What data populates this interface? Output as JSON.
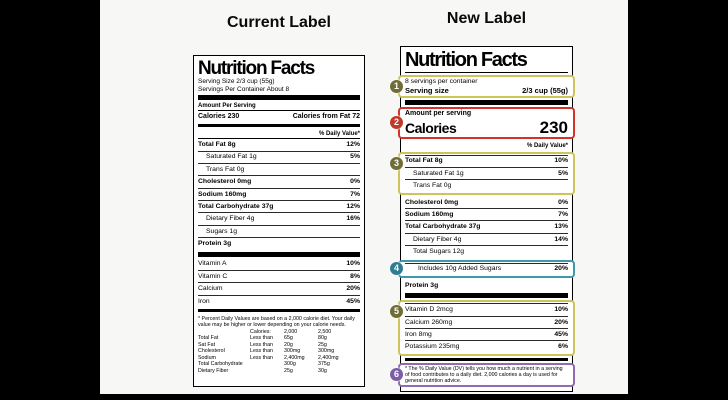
{
  "headings": {
    "current": "Current Label",
    "new": "New Label"
  },
  "colors": {
    "background": "#000000",
    "panel": "#f7f7f5",
    "callout_olive": "#6f6d35",
    "callout_red": "#c0392b",
    "callout_teal": "#2e7d92",
    "callout_purple": "#7a5ea6",
    "highlight_yellow": "#cdc55c",
    "highlight_red": "#d2342a",
    "highlight_teal": "#3e9aa8",
    "highlight_purple": "#8f6bb0"
  },
  "callouts": {
    "items": [
      "1",
      "2",
      "3",
      "4",
      "5",
      "6"
    ]
  },
  "current_label": {
    "title": "Nutrition Facts",
    "serving_size": "Serving Size 2/3 cup (55g)",
    "servings_per_container": "Servings Per Container About 8",
    "amount_per_serving": "Amount Per Serving",
    "calories": "Calories 230",
    "calories_from_fat": "Calories from Fat 72",
    "daily_value_header": "% Daily Value*",
    "nutrient_rows": [
      {
        "label": "Total Fat 8g",
        "value": "12%"
      },
      {
        "label": "Saturated Fat 1g",
        "value": "5%"
      },
      {
        "label": "Trans Fat 0g",
        "value": ""
      },
      {
        "label": "Cholesterol 0mg",
        "value": "0%"
      },
      {
        "label": "Sodium 160mg",
        "value": "7%"
      },
      {
        "label": "Total Carbohydrate 37g",
        "value": "12%"
      },
      {
        "label": "Dietary Fiber 4g",
        "value": "16%"
      },
      {
        "label": "Sugars 1g",
        "value": ""
      },
      {
        "label": "Protein 3g",
        "value": ""
      }
    ],
    "vitamin_rows": [
      {
        "label": "Vitamin A",
        "value": "10%"
      },
      {
        "label": "Vitamin C",
        "value": "8%"
      },
      {
        "label": "Calcium",
        "value": "20%"
      },
      {
        "label": "Iron",
        "value": "45%"
      }
    ],
    "footnote": "* Percent Daily Values are based on a 2,000 calorie diet. Your daily value may be higher or lower depending on your calorie needs.",
    "dv_table": {
      "header": {
        "calories": "Calories:",
        "c2000": "2,000",
        "c2500": "2,500"
      },
      "rows": [
        {
          "name": "Total Fat",
          "qual": "Less than",
          "v2000": "65g",
          "v2500": "80g"
        },
        {
          "name": "Sat Fat",
          "qual": "Less than",
          "v2000": "20g",
          "v2500": "25g"
        },
        {
          "name": "Cholesterol",
          "qual": "Less than",
          "v2000": "300mg",
          "v2500": "300mg"
        },
        {
          "name": "Sodium",
          "qual": "Less than",
          "v2000": "2,400mg",
          "v2500": "2,400mg"
        },
        {
          "name": "Total Carbohydrate",
          "qual": "",
          "v2000": "300g",
          "v2500": "375g"
        },
        {
          "name": "Dietary Fiber",
          "qual": "",
          "v2000": "25g",
          "v2500": "30g"
        }
      ]
    }
  },
  "new_label": {
    "title": "Nutrition Facts",
    "servings_per_container": "8 servings per container",
    "serving_size_label": "Serving size",
    "serving_size_value": "2/3 cup (55g)",
    "amount_per_serving": "Amount per serving",
    "calories_label": "Calories",
    "calories_value": "230",
    "daily_value_header": "% Daily Value*",
    "fat_rows": [
      {
        "label": "Total Fat 8g",
        "value": "10%"
      },
      {
        "label": "Saturated Fat 1g",
        "value": "5%"
      },
      {
        "label": "Trans Fat 0g",
        "value": ""
      }
    ],
    "mid_rows": [
      {
        "label": "Cholesterol 0mg",
        "value": "0%"
      },
      {
        "label": "Sodium 160mg",
        "value": "7%"
      },
      {
        "label": "Total Carbohydrate 37g",
        "value": "13%"
      },
      {
        "label": "Dietary Fiber 4g",
        "value": "14%"
      },
      {
        "label": "Total Sugars 12g",
        "value": ""
      }
    ],
    "added_sugars_row": {
      "label": "Includes 10g Added Sugars",
      "value": "20%"
    },
    "protein_row": {
      "label": "Protein 3g",
      "value": ""
    },
    "vitamin_rows": [
      {
        "label": "Vitamin D 2mcg",
        "value": "10%"
      },
      {
        "label": "Calcium 260mg",
        "value": "20%"
      },
      {
        "label": "Iron 8mg",
        "value": "45%"
      },
      {
        "label": "Potassium 235mg",
        "value": "6%"
      }
    ],
    "footnote": "* The % Daily Value (DV) tells you how much a nutrient in a serving of food contributes to a daily diet. 2,000 calories a day is used for general nutrition advice."
  }
}
